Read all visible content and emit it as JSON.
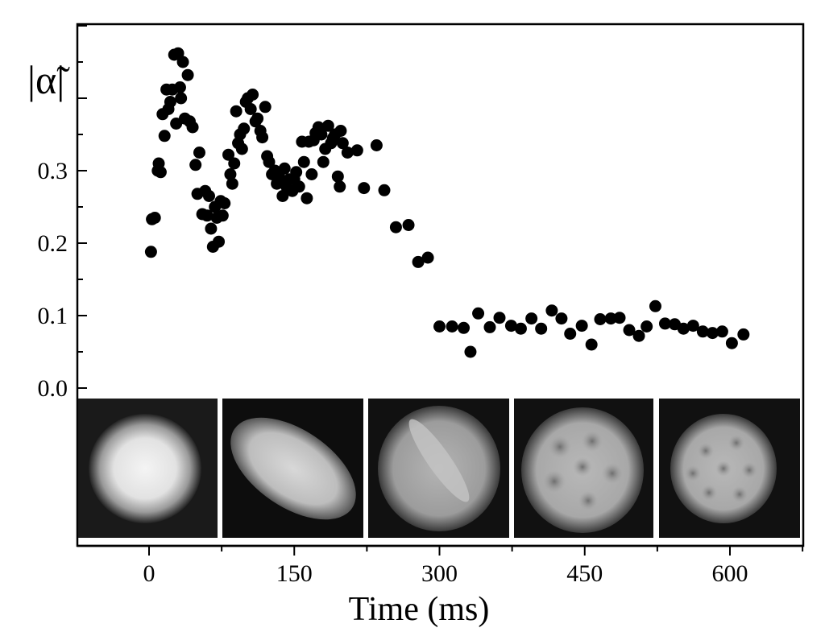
{
  "chart_data": {
    "type": "scatter",
    "xlabel": "Time (ms)",
    "ylabel": "|α̃|",
    "xlim": [
      -90,
      675
    ],
    "ylim": [
      0.0,
      0.5
    ],
    "x_ticks": [
      "0",
      "150",
      "300",
      "450",
      "600"
    ],
    "y_ticks": [
      "0.0",
      "0.1",
      "0.2",
      "0.3"
    ],
    "grid": false,
    "marker_color": "#000000",
    "inset_images": [
      {
        "label": "round condensate",
        "center_ms": -15
      },
      {
        "label": "elongated condensate",
        "center_ms": 135
      },
      {
        "label": "condensate with stripe",
        "center_ms": 285
      },
      {
        "label": "condensate with vortices forming",
        "center_ms": 435
      },
      {
        "label": "vortex lattice",
        "center_ms": 585
      }
    ],
    "series": [
      {
        "points": [
          [
            2,
            0.188
          ],
          [
            3,
            0.233
          ],
          [
            6,
            0.235
          ],
          [
            9,
            0.3
          ],
          [
            10,
            0.31
          ],
          [
            12,
            0.298
          ],
          [
            14,
            0.378
          ],
          [
            16,
            0.348
          ],
          [
            18,
            0.412
          ],
          [
            20,
            0.385
          ],
          [
            22,
            0.395
          ],
          [
            24,
            0.412
          ],
          [
            26,
            0.46
          ],
          [
            28,
            0.365
          ],
          [
            30,
            0.462
          ],
          [
            32,
            0.415
          ],
          [
            33,
            0.4
          ],
          [
            35,
            0.45
          ],
          [
            37,
            0.372
          ],
          [
            40,
            0.432
          ],
          [
            42,
            0.368
          ],
          [
            45,
            0.36
          ],
          [
            48,
            0.308
          ],
          [
            50,
            0.268
          ],
          [
            52,
            0.325
          ],
          [
            55,
            0.24
          ],
          [
            58,
            0.272
          ],
          [
            60,
            0.238
          ],
          [
            62,
            0.265
          ],
          [
            64,
            0.22
          ],
          [
            66,
            0.195
          ],
          [
            68,
            0.25
          ],
          [
            70,
            0.235
          ],
          [
            72,
            0.202
          ],
          [
            74,
            0.258
          ],
          [
            76,
            0.238
          ],
          [
            78,
            0.255
          ],
          [
            82,
            0.322
          ],
          [
            84,
            0.295
          ],
          [
            86,
            0.282
          ],
          [
            88,
            0.31
          ],
          [
            90,
            0.382
          ],
          [
            92,
            0.338
          ],
          [
            94,
            0.35
          ],
          [
            96,
            0.33
          ],
          [
            98,
            0.358
          ],
          [
            100,
            0.395
          ],
          [
            102,
            0.4
          ],
          [
            105,
            0.385
          ],
          [
            107,
            0.405
          ],
          [
            110,
            0.368
          ],
          [
            112,
            0.372
          ],
          [
            115,
            0.355
          ],
          [
            117,
            0.346
          ],
          [
            120,
            0.388
          ],
          [
            122,
            0.32
          ],
          [
            124,
            0.312
          ],
          [
            127,
            0.295
          ],
          [
            130,
            0.3
          ],
          [
            132,
            0.282
          ],
          [
            135,
            0.29
          ],
          [
            138,
            0.265
          ],
          [
            140,
            0.303
          ],
          [
            142,
            0.278
          ],
          [
            145,
            0.288
          ],
          [
            148,
            0.272
          ],
          [
            150,
            0.288
          ],
          [
            152,
            0.298
          ],
          [
            155,
            0.278
          ],
          [
            158,
            0.34
          ],
          [
            160,
            0.312
          ],
          [
            163,
            0.262
          ],
          [
            165,
            0.34
          ],
          [
            168,
            0.295
          ],
          [
            170,
            0.342
          ],
          [
            172,
            0.352
          ],
          [
            175,
            0.36
          ],
          [
            178,
            0.35
          ],
          [
            180,
            0.312
          ],
          [
            182,
            0.33
          ],
          [
            185,
            0.362
          ],
          [
            188,
            0.338
          ],
          [
            190,
            0.345
          ],
          [
            192,
            0.35
          ],
          [
            195,
            0.292
          ],
          [
            197,
            0.278
          ],
          [
            198,
            0.355
          ],
          [
            200,
            0.338
          ],
          [
            205,
            0.325
          ],
          [
            215,
            0.328
          ],
          [
            222,
            0.276
          ],
          [
            235,
            0.335
          ],
          [
            243,
            0.273
          ],
          [
            255,
            0.222
          ],
          [
            268,
            0.225
          ],
          [
            278,
            0.174
          ],
          [
            288,
            0.18
          ],
          [
            300,
            0.085
          ],
          [
            313,
            0.085
          ],
          [
            325,
            0.083
          ],
          [
            332,
            0.05
          ],
          [
            340,
            0.103
          ],
          [
            352,
            0.084
          ],
          [
            362,
            0.097
          ],
          [
            374,
            0.086
          ],
          [
            384,
            0.082
          ],
          [
            395,
            0.096
          ],
          [
            405,
            0.082
          ],
          [
            416,
            0.107
          ],
          [
            426,
            0.096
          ],
          [
            435,
            0.075
          ],
          [
            447,
            0.086
          ],
          [
            457,
            0.06
          ],
          [
            466,
            0.095
          ],
          [
            477,
            0.096
          ],
          [
            486,
            0.097
          ],
          [
            496,
            0.08
          ],
          [
            506,
            0.072
          ],
          [
            514,
            0.085
          ],
          [
            523,
            0.113
          ],
          [
            533,
            0.089
          ],
          [
            543,
            0.088
          ],
          [
            552,
            0.082
          ],
          [
            562,
            0.086
          ],
          [
            572,
            0.078
          ],
          [
            582,
            0.076
          ],
          [
            592,
            0.078
          ],
          [
            602,
            0.062
          ],
          [
            614,
            0.074
          ]
        ]
      }
    ]
  }
}
